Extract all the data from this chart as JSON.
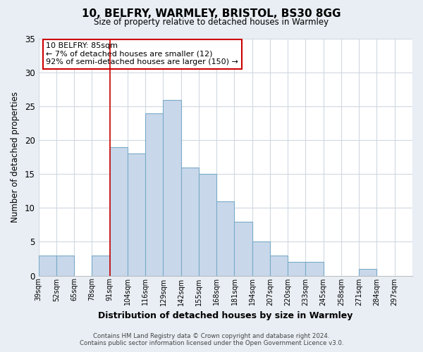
{
  "title": "10, BELFRY, WARMLEY, BRISTOL, BS30 8GG",
  "subtitle": "Size of property relative to detached houses in Warmley",
  "xlabel": "Distribution of detached houses by size in Warmley",
  "ylabel": "Number of detached properties",
  "bin_labels": [
    "39sqm",
    "52sqm",
    "65sqm",
    "78sqm",
    "91sqm",
    "104sqm",
    "116sqm",
    "129sqm",
    "142sqm",
    "155sqm",
    "168sqm",
    "181sqm",
    "194sqm",
    "207sqm",
    "220sqm",
    "233sqm",
    "245sqm",
    "258sqm",
    "271sqm",
    "284sqm",
    "297sqm"
  ],
  "bar_heights": [
    3,
    3,
    0,
    3,
    19,
    18,
    24,
    26,
    16,
    15,
    11,
    8,
    5,
    3,
    2,
    2,
    0,
    0,
    1,
    0,
    0
  ],
  "bar_color": "#c8d8ea",
  "bar_edge_color": "#7aaac8",
  "annotation_box_text": "10 BELFRY: 85sqm\n← 7% of detached houses are smaller (12)\n92% of semi-detached houses are larger (150) →",
  "annotation_box_facecolor": "white",
  "annotation_box_edgecolor": "#cc0000",
  "red_line_x": 4,
  "ylim": [
    0,
    35
  ],
  "yticks": [
    0,
    5,
    10,
    15,
    20,
    25,
    30,
    35
  ],
  "fig_background_color": "#e8eef4",
  "plot_background": "white",
  "grid_color": "#d0d8e0",
  "footer_line1": "Contains HM Land Registry data © Crown copyright and database right 2024.",
  "footer_line2": "Contains public sector information licensed under the Open Government Licence v3.0."
}
